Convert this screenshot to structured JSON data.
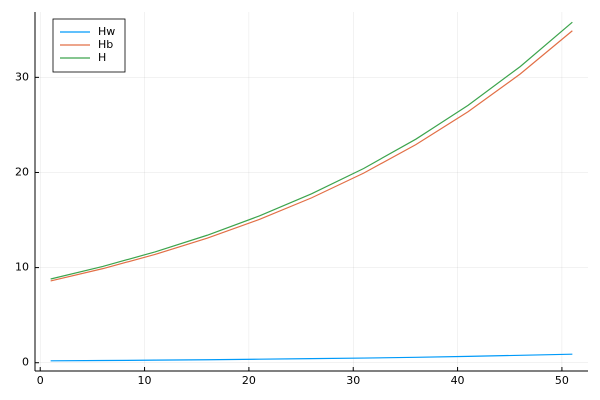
{
  "chart_data": {
    "type": "line",
    "x": [
      1,
      6,
      11,
      16,
      21,
      26,
      31,
      36,
      41,
      46,
      51
    ],
    "series": [
      {
        "name": "Hw",
        "color": "#009af9",
        "values": [
          0.2,
          0.23,
          0.27,
          0.31,
          0.37,
          0.43,
          0.49,
          0.57,
          0.67,
          0.78,
          0.9
        ]
      },
      {
        "name": "Hb",
        "color": "#e26f46",
        "values": [
          8.6,
          9.89,
          11.38,
          13.09,
          15.06,
          17.33,
          19.93,
          22.93,
          26.38,
          30.35,
          34.9
        ]
      },
      {
        "name": "H",
        "color": "#3da44d",
        "values": [
          8.8,
          10.12,
          11.65,
          13.4,
          15.43,
          17.76,
          20.42,
          23.5,
          27.05,
          31.13,
          35.8
        ]
      }
    ],
    "xlim": [
      -0.5,
      52.5
    ],
    "xticks": [
      0,
      10,
      20,
      30,
      40,
      50
    ],
    "ylim": [
      -0.87,
      36.87
    ],
    "yticks": [
      0,
      10,
      20,
      30
    ],
    "grid": true,
    "legend": "top-left"
  }
}
